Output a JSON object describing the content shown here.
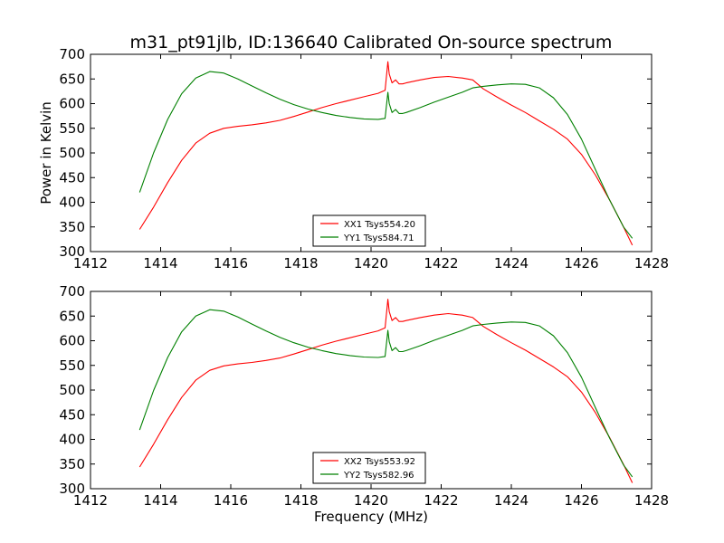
{
  "title": "m31_pt91jlb, ID:136640 Calibrated On-source spectrum",
  "colors": {
    "xx": "#ff0000",
    "yy": "#008000"
  },
  "chart_data": [
    {
      "type": "line",
      "xlabel": "",
      "ylabel": "Power in Kelvin",
      "xlim": [
        1412,
        1428
      ],
      "ylim": [
        300,
        700
      ],
      "xticks": [
        "1412",
        "1414",
        "1416",
        "1418",
        "1420",
        "1422",
        "1424",
        "1426",
        "1428"
      ],
      "yticks": [
        "300",
        "350",
        "400",
        "450",
        "500",
        "550",
        "600",
        "650",
        "700"
      ],
      "legend_position": "lower-center",
      "series": [
        {
          "name": "XX1 Tsys554.20",
          "color": "#ff0000",
          "x": [
            1413.4,
            1413.8,
            1414.2,
            1414.6,
            1415.0,
            1415.4,
            1415.8,
            1416.2,
            1416.6,
            1417.0,
            1417.4,
            1417.8,
            1418.2,
            1418.6,
            1419.0,
            1419.4,
            1419.8,
            1420.2,
            1420.4,
            1420.48,
            1420.52,
            1420.6,
            1420.7,
            1420.8,
            1420.9,
            1421.0,
            1421.4,
            1421.8,
            1422.2,
            1422.6,
            1422.9,
            1423.2,
            1423.6,
            1424.0,
            1424.4,
            1424.8,
            1425.2,
            1425.6,
            1426.0,
            1426.4,
            1426.8,
            1427.2,
            1427.45
          ],
          "y": [
            345,
            390,
            440,
            485,
            520,
            540,
            550,
            554,
            557,
            561,
            566,
            574,
            583,
            592,
            600,
            607,
            614,
            621,
            627,
            685,
            660,
            642,
            648,
            640,
            640,
            642,
            648,
            653,
            655,
            652,
            648,
            630,
            613,
            597,
            582,
            565,
            548,
            528,
            497,
            455,
            405,
            350,
            313
          ]
        },
        {
          "name": "YY1 Tsys584.71",
          "color": "#008000",
          "x": [
            1413.4,
            1413.8,
            1414.2,
            1414.6,
            1415.0,
            1415.4,
            1415.8,
            1416.2,
            1416.6,
            1417.0,
            1417.4,
            1417.8,
            1418.2,
            1418.6,
            1419.0,
            1419.4,
            1419.8,
            1420.2,
            1420.4,
            1420.48,
            1420.52,
            1420.6,
            1420.7,
            1420.8,
            1420.9,
            1421.0,
            1421.4,
            1421.8,
            1422.2,
            1422.6,
            1422.9,
            1423.2,
            1423.6,
            1424.0,
            1424.4,
            1424.8,
            1425.2,
            1425.6,
            1426.0,
            1426.4,
            1426.8,
            1427.2,
            1427.45
          ],
          "y": [
            420,
            500,
            568,
            620,
            652,
            665,
            662,
            650,
            636,
            622,
            609,
            598,
            589,
            582,
            576,
            572,
            569,
            568,
            570,
            623,
            600,
            582,
            588,
            580,
            580,
            582,
            592,
            603,
            613,
            623,
            632,
            635,
            638,
            640,
            639,
            632,
            612,
            578,
            528,
            466,
            405,
            350,
            327
          ]
        }
      ]
    },
    {
      "type": "line",
      "xlabel": "Frequency (MHz)",
      "ylabel": "",
      "xlim": [
        1412,
        1428
      ],
      "ylim": [
        300,
        700
      ],
      "xticks": [
        "1412",
        "1414",
        "1416",
        "1418",
        "1420",
        "1422",
        "1424",
        "1426",
        "1428"
      ],
      "yticks": [
        "300",
        "350",
        "400",
        "450",
        "500",
        "550",
        "600",
        "650",
        "700"
      ],
      "legend_position": "lower-center",
      "series": [
        {
          "name": "XX2 Tsys553.92",
          "color": "#ff0000",
          "x": [
            1413.4,
            1413.8,
            1414.2,
            1414.6,
            1415.0,
            1415.4,
            1415.8,
            1416.2,
            1416.6,
            1417.0,
            1417.4,
            1417.8,
            1418.2,
            1418.6,
            1419.0,
            1419.4,
            1419.8,
            1420.2,
            1420.4,
            1420.48,
            1420.52,
            1420.6,
            1420.7,
            1420.8,
            1420.9,
            1421.0,
            1421.4,
            1421.8,
            1422.2,
            1422.6,
            1422.9,
            1423.2,
            1423.6,
            1424.0,
            1424.4,
            1424.8,
            1425.2,
            1425.6,
            1426.0,
            1426.4,
            1426.8,
            1427.2,
            1427.45
          ],
          "y": [
            344,
            390,
            440,
            485,
            520,
            540,
            549,
            553,
            556,
            560,
            565,
            573,
            582,
            591,
            599,
            606,
            613,
            620,
            626,
            684,
            659,
            641,
            647,
            639,
            639,
            641,
            647,
            652,
            655,
            652,
            647,
            629,
            612,
            596,
            581,
            564,
            547,
            527,
            496,
            454,
            404,
            349,
            312
          ]
        },
        {
          "name": "YY2 Tsys582.96",
          "color": "#008000",
          "x": [
            1413.4,
            1413.8,
            1414.2,
            1414.6,
            1415.0,
            1415.4,
            1415.8,
            1416.2,
            1416.6,
            1417.0,
            1417.4,
            1417.8,
            1418.2,
            1418.6,
            1419.0,
            1419.4,
            1419.8,
            1420.2,
            1420.4,
            1420.48,
            1420.52,
            1420.6,
            1420.7,
            1420.8,
            1420.9,
            1421.0,
            1421.4,
            1421.8,
            1422.2,
            1422.6,
            1422.9,
            1423.2,
            1423.6,
            1424.0,
            1424.4,
            1424.8,
            1425.2,
            1425.6,
            1426.0,
            1426.4,
            1426.8,
            1427.2,
            1427.45
          ],
          "y": [
            419,
            499,
            566,
            618,
            650,
            663,
            660,
            648,
            634,
            620,
            607,
            596,
            587,
            580,
            574,
            570,
            567,
            566,
            568,
            621,
            598,
            580,
            586,
            578,
            578,
            580,
            590,
            601,
            611,
            621,
            630,
            633,
            636,
            638,
            637,
            630,
            610,
            576,
            526,
            464,
            403,
            348,
            324
          ]
        }
      ]
    }
  ]
}
